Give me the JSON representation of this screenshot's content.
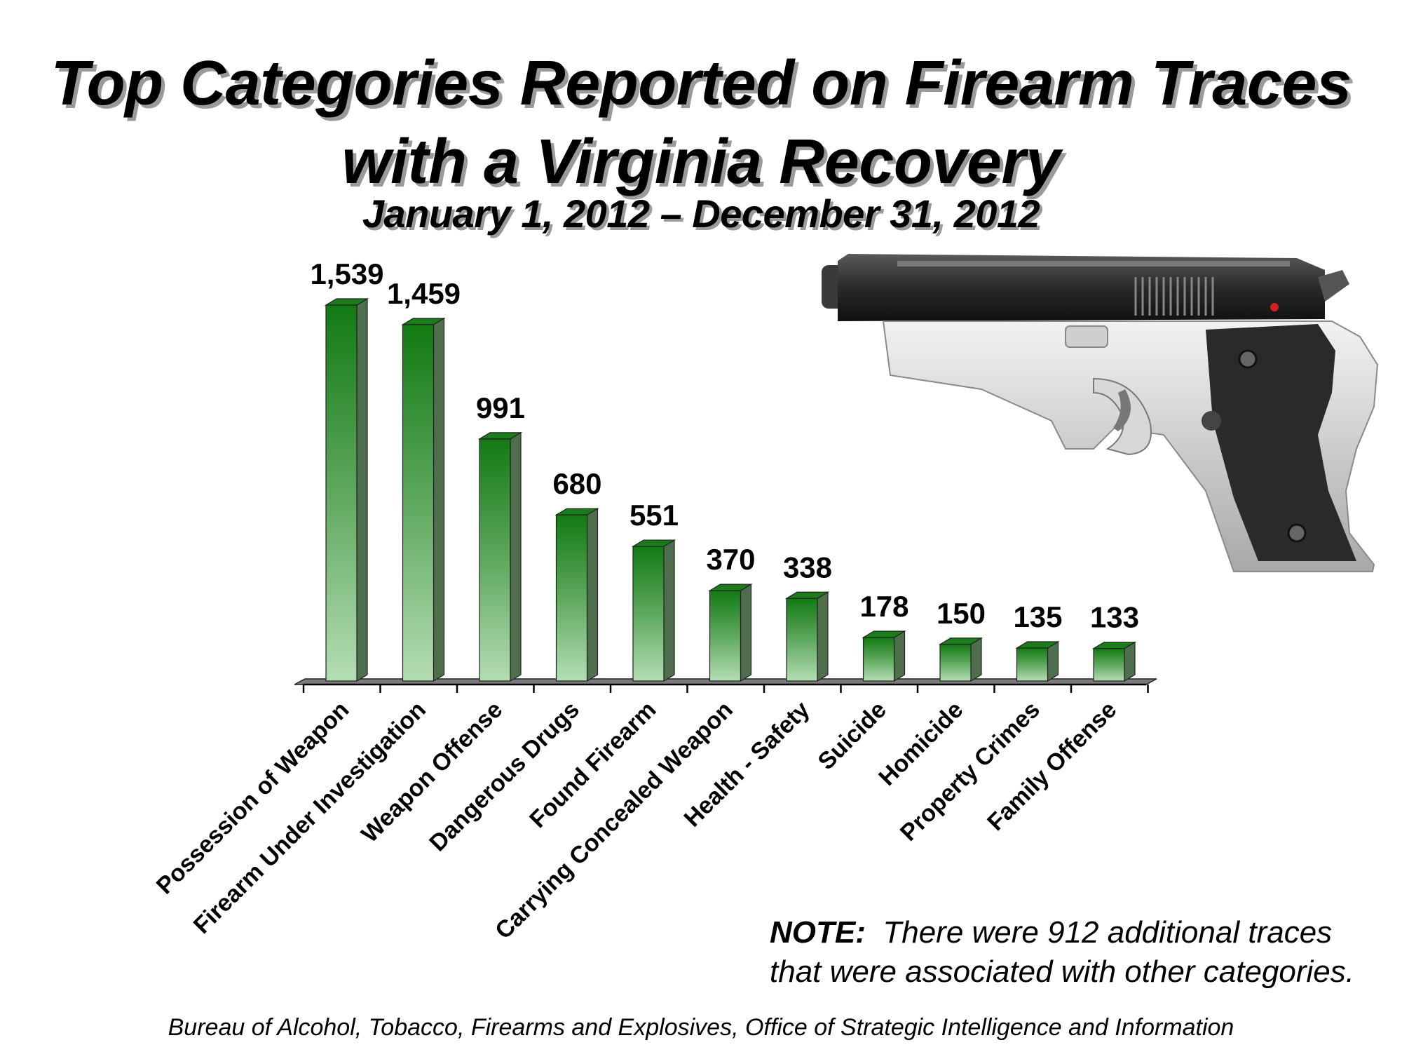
{
  "chart_data": {
    "type": "bar",
    "title": "Top Categories Reported on Firearm Traces",
    "title_line2": "with a Virginia Recovery",
    "subtitle": "January 1, 2012 – December 31, 2012",
    "categories": [
      "Possession of Weapon",
      "Firearm Under Investigation",
      "Weapon Offense",
      "Dangerous Drugs",
      "Found Firearm",
      "Carrying Concealed Weapon",
      "Health - Safety",
      "Suicide",
      "Homicide",
      "Property Crimes",
      "Family Offense"
    ],
    "values": [
      1539,
      1459,
      991,
      680,
      551,
      370,
      338,
      178,
      150,
      135,
      133
    ],
    "value_labels": [
      "1,539",
      "1,459",
      "991",
      "680",
      "551",
      "370",
      "338",
      "178",
      "150",
      "135",
      "133"
    ],
    "ylim": [
      0,
      1539
    ],
    "grid": false,
    "bar_color": "#1a7d1a"
  },
  "note": {
    "label": "NOTE:",
    "text": "There were 912 additional traces that were associated with other categories."
  },
  "source": "Bureau of Alcohol, Tobacco, Firearms and Explosives, Office of Strategic Intelligence and Information",
  "image_icon": "pistol-icon"
}
